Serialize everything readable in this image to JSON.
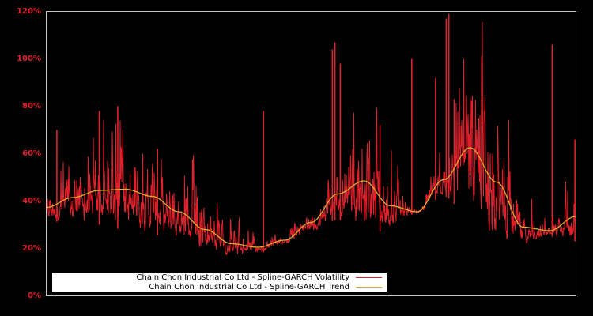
{
  "chart_data": {
    "type": "line",
    "title": "",
    "xlabel": "",
    "ylabel": "",
    "ylim": [
      0,
      120
    ],
    "y_ticks": [
      "0%",
      "20%",
      "40%",
      "60%",
      "80%",
      "100%",
      "120%"
    ],
    "y_tick_values": [
      0,
      20,
      40,
      60,
      80,
      100,
      120
    ],
    "grid": false,
    "legend_position": "lower left",
    "x_positions_normalized": [
      0.0,
      0.05,
      0.1,
      0.15,
      0.2,
      0.25,
      0.3,
      0.35,
      0.4,
      0.45,
      0.5,
      0.55,
      0.6,
      0.65,
      0.7,
      0.75,
      0.8,
      0.85,
      0.9,
      0.95,
      1.0
    ],
    "series": [
      {
        "name": "Chain Chon Industrial Co Ltd - Spline-GARCH Volatility",
        "color": "#e0202a",
        "description": "noisy daily volatility around trend, with spikes",
        "baseline_min": [
          32,
          30,
          30,
          28,
          26,
          22,
          18,
          16,
          18,
          22,
          27,
          32,
          27,
          27,
          35,
          42,
          33,
          22,
          21,
          25,
          23
        ],
        "spikes": [
          {
            "x": 0.02,
            "value": 70
          },
          {
            "x": 0.1,
            "value": 78
          },
          {
            "x": 0.135,
            "value": 80
          },
          {
            "x": 0.21,
            "value": 62
          },
          {
            "x": 0.41,
            "value": 78
          },
          {
            "x": 0.54,
            "value": 104
          },
          {
            "x": 0.545,
            "value": 107
          },
          {
            "x": 0.555,
            "value": 98
          },
          {
            "x": 0.63,
            "value": 72
          },
          {
            "x": 0.69,
            "value": 100
          },
          {
            "x": 0.735,
            "value": 92
          },
          {
            "x": 0.755,
            "value": 117
          },
          {
            "x": 0.76,
            "value": 119
          },
          {
            "x": 0.77,
            "value": 83
          },
          {
            "x": 0.955,
            "value": 106
          },
          {
            "x": 0.998,
            "value": 66
          }
        ]
      },
      {
        "name": "Chain Chon Industrial Co Ltd - Spline-GARCH Trend",
        "color": "#d9b030",
        "values": [
          37.3,
          41.5,
          44.5,
          45.0,
          42.0,
          35.5,
          28.0,
          22.0,
          20.5,
          23.5,
          31.0,
          43.0,
          48.5,
          38.0,
          35.5,
          49.0,
          62.5,
          48.0,
          29.0,
          27.5,
          33.5
        ]
      }
    ]
  },
  "legend": {
    "items": [
      {
        "label": "Chain Chon Industrial Co Ltd - Spline-GARCH Volatility",
        "color": "#e0202a"
      },
      {
        "label": "Chain Chon Industrial Co Ltd - Spline-GARCH Trend",
        "color": "#d9b030"
      }
    ]
  },
  "style": {
    "background": "#000000",
    "frame": "#c8c8c8",
    "tick_color": "#e0202a"
  }
}
